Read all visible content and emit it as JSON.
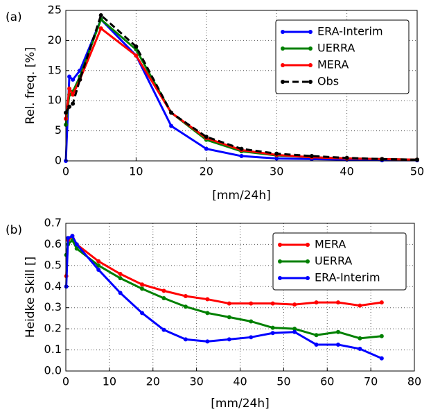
{
  "chart_data": [
    {
      "type": "line",
      "panel_label": "(a)",
      "y_label": "Rel. freq. [%]",
      "x_label": "[mm/24h]",
      "x": [
        0,
        0.5,
        1,
        2,
        5,
        10,
        15,
        20,
        25,
        30,
        35,
        40,
        45,
        50
      ],
      "series": [
        {
          "name": "ERA-Interim",
          "color": "#0000ff",
          "values": [
            0,
            14,
            13.5,
            15,
            23.5,
            17.5,
            5.8,
            2,
            0.8,
            0.4,
            0.3,
            0.2,
            0.1,
            0.1
          ]
        },
        {
          "name": "UERRA",
          "color": "#008000",
          "values": [
            6,
            11,
            11.5,
            14,
            23.5,
            18.5,
            8,
            3.5,
            1.6,
            0.9,
            0.6,
            0.4,
            0.3,
            0.2
          ]
        },
        {
          "name": "MERA",
          "color": "#ff0000",
          "values": [
            7,
            12,
            11,
            13.5,
            22,
            17.5,
            8,
            3.8,
            1.8,
            1,
            0.6,
            0.4,
            0.3,
            0.2
          ]
        },
        {
          "name": "Obs",
          "color": "#000000",
          "dashed": true,
          "values": [
            8,
            9,
            9.5,
            13.5,
            24.2,
            19,
            8,
            4,
            2,
            1.2,
            0.8,
            0.5,
            0.3,
            0.2
          ]
        }
      ],
      "xlim": [
        0,
        50
      ],
      "xticks": [
        0,
        10,
        20,
        30,
        40,
        50
      ],
      "ylim": [
        0,
        25
      ],
      "yticks": [
        0,
        5,
        10,
        15,
        20,
        25
      ],
      "grid": true,
      "legend": "upper right"
    },
    {
      "type": "line",
      "panel_label": "(b)",
      "y_label": "Heidke Skill []",
      "x_label": "[mm/24h]",
      "x": [
        0.1,
        0.5,
        1.5,
        2.5,
        7.5,
        12.5,
        17.5,
        22.5,
        27.5,
        32.5,
        37.5,
        42.5,
        47.5,
        52.5,
        57.5,
        62.5,
        67.5,
        72.5
      ],
      "series": [
        {
          "name": "MERA",
          "color": "#ff0000",
          "values": [
            0.45,
            0.62,
            0.64,
            0.6,
            0.52,
            0.46,
            0.41,
            0.38,
            0.355,
            0.34,
            0.32,
            0.32,
            0.32,
            0.315,
            0.325,
            0.325,
            0.31,
            0.325
          ]
        },
        {
          "name": "UERRA",
          "color": "#008000",
          "values": [
            0.55,
            0.6,
            0.62,
            0.58,
            0.5,
            0.44,
            0.39,
            0.345,
            0.305,
            0.275,
            0.255,
            0.235,
            0.205,
            0.2,
            0.17,
            0.185,
            0.155,
            0.165
          ]
        },
        {
          "name": "ERA-Interim",
          "color": "#0000ff",
          "values": [
            0.4,
            0.63,
            0.64,
            0.6,
            0.48,
            0.37,
            0.275,
            0.195,
            0.15,
            0.14,
            0.15,
            0.16,
            0.18,
            0.185,
            0.125,
            0.125,
            0.105,
            0.06
          ]
        }
      ],
      "xlim": [
        0,
        80
      ],
      "xticks": [
        0,
        10,
        20,
        30,
        40,
        50,
        60,
        70,
        80
      ],
      "ylim": [
        0,
        0.7
      ],
      "yticks": [
        {
          "value": 0,
          "label": "0.0"
        },
        0.1,
        0.2,
        0.3,
        0.4,
        0.5,
        0.6,
        0.7
      ],
      "grid": true,
      "legend": "upper right"
    }
  ]
}
